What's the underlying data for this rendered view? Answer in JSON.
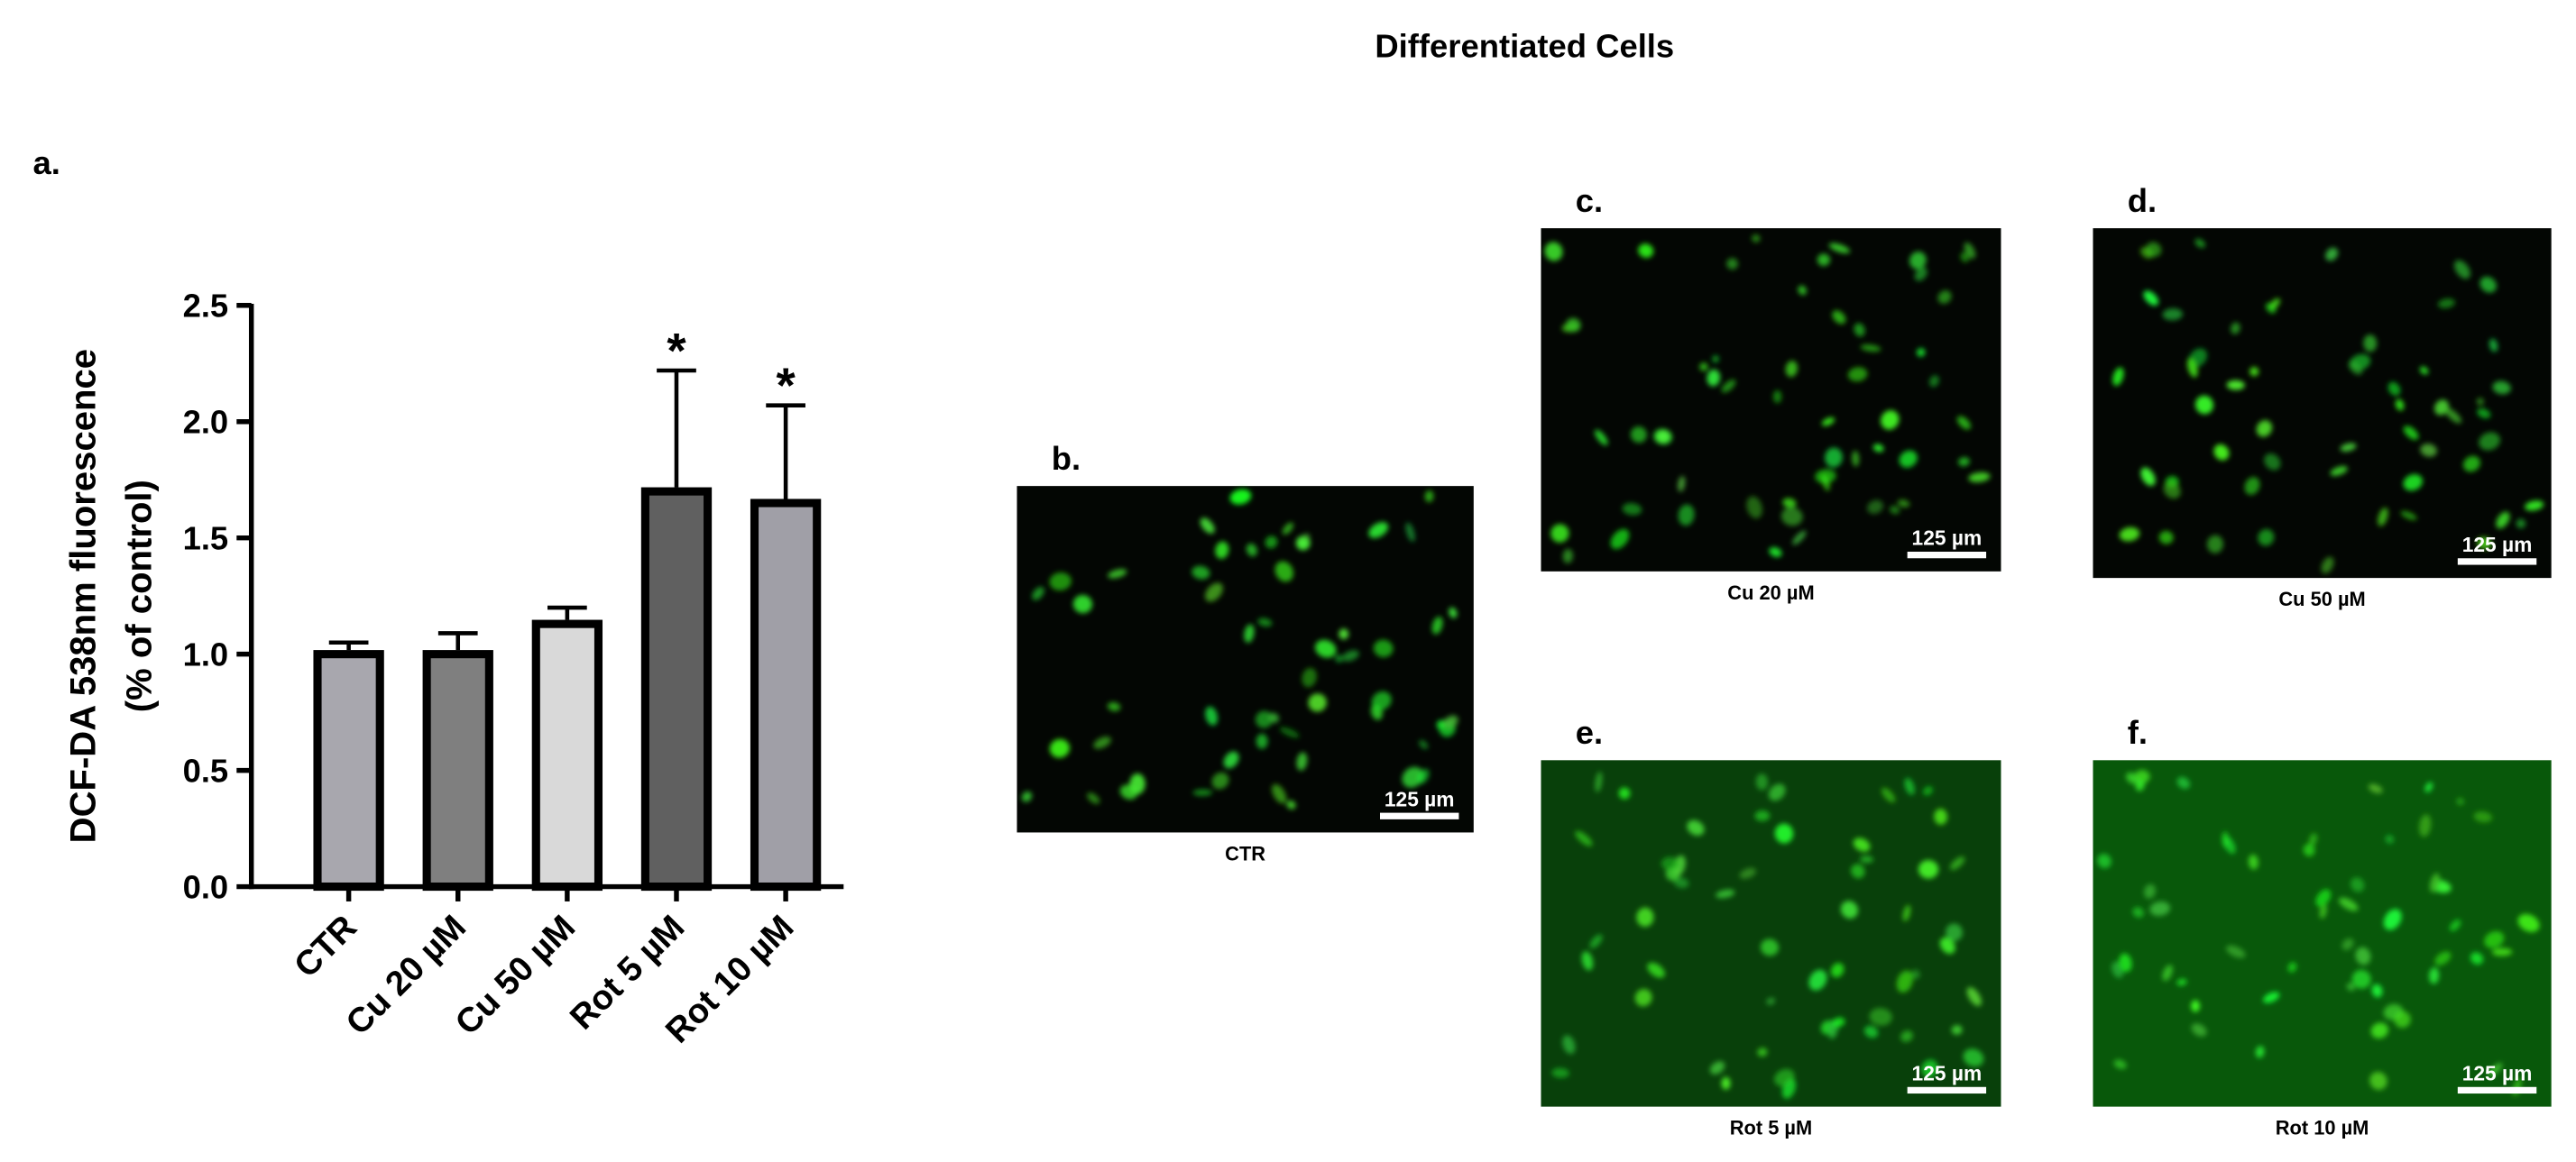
{
  "figure_title": "Differentiated Cells",
  "chart_data": {
    "type": "bar",
    "panel_label": "a.",
    "ylabel": [
      "DCF-DA 538nm fluorescence",
      "(% of control)"
    ],
    "categories": [
      "CTR",
      "Cu 20 µM",
      "Cu 50 µM",
      "Rot 5 µM",
      "Rot 10 µM"
    ],
    "values": [
      1.0,
      1.0,
      1.13,
      1.7,
      1.65
    ],
    "errors": [
      0.05,
      0.09,
      0.07,
      0.52,
      0.42
    ],
    "annotations": [
      null,
      null,
      null,
      "*",
      "*"
    ],
    "colors": [
      "#a8a7ae",
      "#7f7f7f",
      "#d9d9d9",
      "#606060",
      "#a09fa7"
    ],
    "ylim": [
      0,
      2.5
    ],
    "yticks": [
      {
        "value": 0,
        "label": "0.0"
      },
      0.5,
      {
        "value": 1,
        "label": "1.0"
      },
      1.5,
      {
        "value": 2,
        "label": "2.0"
      },
      2.5
    ]
  },
  "images": [
    {
      "label": "b.",
      "caption": "CTR",
      "scale_bar": "125 µm"
    },
    {
      "label": "c.",
      "caption": "Cu 20 µM",
      "scale_bar": "125 µm"
    },
    {
      "label": "d.",
      "caption": "Cu 50 µM",
      "scale_bar": "125 µm"
    },
    {
      "label": "e.",
      "caption": "Rot 5 µM",
      "scale_bar": "125 µm"
    },
    {
      "label": "f.",
      "caption": "Rot 10 µM",
      "scale_bar": "125 µm"
    }
  ]
}
